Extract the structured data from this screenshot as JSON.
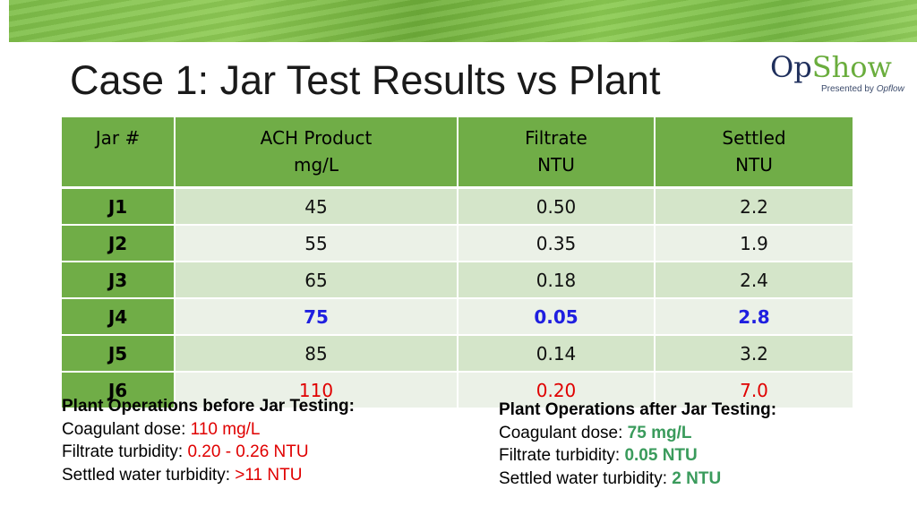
{
  "slide": {
    "title": "Case 1: Jar Test Results vs Plant"
  },
  "logo": {
    "part1": "Op",
    "part2": "Show",
    "presented_by": "Presented by",
    "presented_brand": "Opflow"
  },
  "colors": {
    "header_green": "#70ad47",
    "highlight_blue": "#1f1fe0",
    "highlight_red": "#e00000",
    "result_green": "#3a9b5c"
  },
  "table": {
    "headers": [
      {
        "line1": "Jar #",
        "line2": ""
      },
      {
        "line1": "ACH Product",
        "line2": "mg/L"
      },
      {
        "line1": "Filtrate",
        "line2": "NTU"
      },
      {
        "line1": "Settled",
        "line2": "NTU"
      }
    ],
    "rows": [
      {
        "jar": "J1",
        "ach": "45",
        "filtrate": "0.50",
        "settled": "2.2",
        "style": "normal"
      },
      {
        "jar": "J2",
        "ach": "55",
        "filtrate": "0.35",
        "settled": "1.9",
        "style": "normal"
      },
      {
        "jar": "J3",
        "ach": "65",
        "filtrate": "0.18",
        "settled": "2.4",
        "style": "normal"
      },
      {
        "jar": "J4",
        "ach": "75",
        "filtrate": "0.05",
        "settled": "2.8",
        "style": "blue"
      },
      {
        "jar": "J5",
        "ach": "85",
        "filtrate": "0.14",
        "settled": "3.2",
        "style": "normal"
      },
      {
        "jar": "J6",
        "ach": "110",
        "filtrate": "0.20",
        "settled": "7.0",
        "style": "red"
      }
    ]
  },
  "before": {
    "heading": "Plant Operations before Jar Testing:",
    "dose_label": "Coagulant dose: ",
    "dose_value": "110 mg/L",
    "filtrate_label": "Filtrate turbidity: ",
    "filtrate_value": "0.20 - 0.26 NTU",
    "settled_label": "Settled water turbidity: ",
    "settled_value": ">11 NTU"
  },
  "after": {
    "heading": "Plant Operations after Jar Testing:",
    "dose_label": "Coagulant dose: ",
    "dose_value": "75 mg/L",
    "filtrate_label": "Filtrate turbidity: ",
    "filtrate_value": "0.05 NTU",
    "settled_label": "Settled water turbidity: ",
    "settled_value": "2 NTU"
  }
}
